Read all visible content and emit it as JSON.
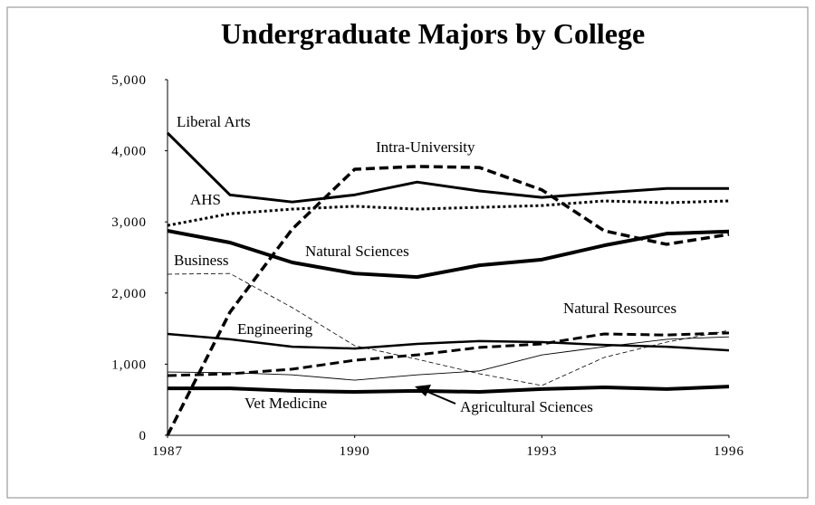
{
  "chart_data": {
    "type": "line",
    "title": "Undergraduate Majors by College",
    "x": [
      1987,
      1988,
      1989,
      1990,
      1991,
      1992,
      1993,
      1994,
      1995,
      1996
    ],
    "xlim": [
      1987,
      1996
    ],
    "xticks": [
      1987,
      1990,
      1993,
      1996
    ],
    "ylim": [
      0,
      5000
    ],
    "yticks": [
      0,
      {
        "value": 1000,
        "label": "1,000"
      },
      {
        "value": 2000,
        "label": "2,000"
      },
      {
        "value": 3000,
        "label": "3,000"
      },
      {
        "value": 4000,
        "label": "4,000"
      },
      {
        "value": 5000,
        "label": "5,000"
      }
    ],
    "grid": false,
    "series": [
      {
        "name": "Liberal Arts",
        "color": "#000000",
        "style": "solid",
        "width": 3,
        "values": [
          4250,
          3380,
          3280,
          3380,
          3560,
          3435,
          3345,
          3410,
          3470,
          3470
        ]
      },
      {
        "name": "Intra-University",
        "color": "#000000",
        "style": "dashed",
        "width": 3.5,
        "values": [
          0,
          1730,
          2900,
          3740,
          3780,
          3765,
          3450,
          2875,
          2685,
          2825
        ]
      },
      {
        "name": "AHS",
        "color": "#000000",
        "style": "dotted",
        "width": 3,
        "values": [
          2950,
          3115,
          3180,
          3220,
          3180,
          3205,
          3230,
          3295,
          3270,
          3295
        ]
      },
      {
        "name": "Natural Sciences",
        "color": "#000000",
        "style": "solid",
        "width": 4,
        "values": [
          2875,
          2710,
          2430,
          2275,
          2225,
          2390,
          2470,
          2670,
          2835,
          2865
        ]
      },
      {
        "name": "Business",
        "color": "#000000",
        "style": "dashed-thin",
        "width": 0.8,
        "values": [
          2265,
          2275,
          1795,
          1260,
          1070,
          865,
          700,
          1095,
          1310,
          1475
        ]
      },
      {
        "name": "Engineering",
        "color": "#000000",
        "style": "solid",
        "width": 2.5,
        "values": [
          1425,
          1350,
          1245,
          1220,
          1285,
          1325,
          1310,
          1270,
          1245,
          1195
        ]
      },
      {
        "name": "Natural Resources",
        "color": "#000000",
        "style": "dashed",
        "width": 3,
        "values": [
          840,
          865,
          930,
          1055,
          1130,
          1235,
          1285,
          1425,
          1410,
          1440
        ]
      },
      {
        "name": "Agricultural Sciences",
        "color": "#000000",
        "style": "solid",
        "width": 0.9,
        "values": [
          890,
          880,
          850,
          775,
          850,
          905,
          1130,
          1245,
          1350,
          1385
        ]
      },
      {
        "name": "Vet Medicine",
        "color": "#000000",
        "style": "solid",
        "width": 4,
        "values": [
          660,
          660,
          625,
          610,
          625,
          610,
          650,
          675,
          650,
          685
        ]
      }
    ]
  }
}
